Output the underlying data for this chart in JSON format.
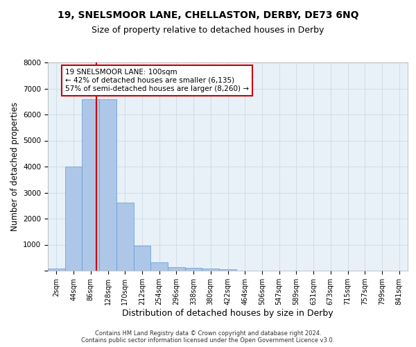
{
  "title": "19, SNELSMOOR LANE, CHELLASTON, DERBY, DE73 6NQ",
  "subtitle": "Size of property relative to detached houses in Derby",
  "xlabel": "Distribution of detached houses by size in Derby",
  "ylabel": "Number of detached properties",
  "footer_line1": "Contains HM Land Registry data © Crown copyright and database right 2024.",
  "footer_line2": "Contains public sector information licensed under the Open Government Licence v3.0.",
  "bin_labels": [
    "2sqm",
    "44sqm",
    "86sqm",
    "128sqm",
    "170sqm",
    "212sqm",
    "254sqm",
    "296sqm",
    "338sqm",
    "380sqm",
    "422sqm",
    "464sqm",
    "506sqm",
    "547sqm",
    "589sqm",
    "631sqm",
    "673sqm",
    "715sqm",
    "757sqm",
    "799sqm",
    "841sqm"
  ],
  "bar_values": [
    80,
    4000,
    6600,
    6600,
    2620,
    960,
    320,
    130,
    110,
    70,
    65,
    0,
    0,
    0,
    0,
    0,
    0,
    0,
    0,
    0,
    0
  ],
  "bar_color": "#aec6e8",
  "bar_edge_color": "#5b9bd5",
  "grid_color": "#d0dde8",
  "background_color": "#e8f0f8",
  "red_line_x": 2.35,
  "red_line_color": "#cc0000",
  "annotation_text": "19 SNELSMOOR LANE: 100sqm\n← 42% of detached houses are smaller (6,135)\n57% of semi-detached houses are larger (8,260) →",
  "annotation_box_color": "#ffffff",
  "annotation_box_edge_color": "#cc0000",
  "ylim": [
    0,
    8000
  ],
  "yticks": [
    0,
    1000,
    2000,
    3000,
    4000,
    5000,
    6000,
    7000,
    8000
  ],
  "title_fontsize": 10,
  "subtitle_fontsize": 9,
  "xlabel_fontsize": 9,
  "ylabel_fontsize": 8.5,
  "tick_fontsize": 7.5,
  "annotation_fontsize": 7.5,
  "footer_fontsize": 6
}
